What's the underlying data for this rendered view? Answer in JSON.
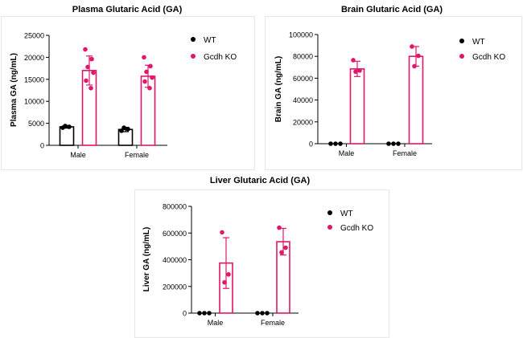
{
  "colors": {
    "wt": "#000000",
    "ko": "#e0176a",
    "axis": "#000000"
  },
  "chart_data": [
    {
      "id": "plasma",
      "type": "bar",
      "title": "Plasma Glutaric Acid (GA)",
      "ylabel": "Plasma GA (ng/mL)",
      "xlabel": "",
      "categories": [
        "Male",
        "Female"
      ],
      "ylim": [
        0,
        25000
      ],
      "yticks": [
        0,
        5000,
        10000,
        15000,
        20000,
        25000
      ],
      "ytick_labels": [
        "0",
        "5000",
        "10000",
        "15000",
        "20000",
        "25000"
      ],
      "legend_position": "top-right",
      "series": [
        {
          "name": "WT",
          "color": "#000000",
          "values": [
            4200,
            3600
          ],
          "errors": [
            300,
            500
          ],
          "points": [
            [
              4000,
              4200,
              4400
            ],
            [
              3300,
              3700,
              4000
            ]
          ]
        },
        {
          "name": "Gcdh KO",
          "color": "#e0176a",
          "values": [
            17000,
            15700
          ],
          "errors": [
            3300,
            2500
          ],
          "points": [
            [
              21800,
              19600,
              17800,
              16500,
              14700,
              13000
            ],
            [
              20000,
              18000,
              16700,
              15400,
              14500,
              13000
            ]
          ]
        }
      ]
    },
    {
      "id": "brain",
      "type": "bar",
      "title": "Brain Glutaric Acid (GA)",
      "ylabel": "Brain GA (ng/mL)",
      "xlabel": "",
      "categories": [
        "Male",
        "Female"
      ],
      "ylim": [
        0,
        100000
      ],
      "yticks": [
        0,
        20000,
        40000,
        60000,
        80000,
        100000
      ],
      "ytick_labels": [
        "0",
        "20000",
        "40000",
        "60000",
        "80000",
        "100000"
      ],
      "legend_position": "top-right",
      "series": [
        {
          "name": "WT",
          "color": "#000000",
          "values": [
            0,
            0
          ],
          "errors": [
            0,
            0
          ],
          "points": [
            [
              0,
              0,
              0
            ],
            [
              0,
              0,
              0
            ]
          ]
        },
        {
          "name": "Gcdh KO",
          "color": "#e0176a",
          "values": [
            68500,
            80000
          ],
          "errors": [
            7000,
            9000
          ],
          "points": [
            [
              76500,
              67000,
              66000
            ],
            [
              89000,
              80500,
              71000
            ]
          ]
        }
      ]
    },
    {
      "id": "liver",
      "type": "bar",
      "title": "Liver Glutaric Acid (GA)",
      "ylabel": "Liver GA (ng/mL)",
      "xlabel": "",
      "categories": [
        "Male",
        "Female"
      ],
      "ylim": [
        0,
        800000
      ],
      "yticks": [
        0,
        200000,
        400000,
        600000,
        800000
      ],
      "ytick_labels": [
        "0",
        "200000",
        "400000",
        "600000",
        "800000"
      ],
      "legend_position": "top-right",
      "series": [
        {
          "name": "WT",
          "color": "#000000",
          "values": [
            0,
            0
          ],
          "errors": [
            0,
            0
          ],
          "points": [
            [
              0,
              0,
              0
            ],
            [
              0,
              0,
              0
            ]
          ]
        },
        {
          "name": "Gcdh KO",
          "color": "#e0176a",
          "values": [
            375000,
            535000
          ],
          "errors": [
            190000,
            100000
          ],
          "points": [
            [
              605000,
              290000,
              230000
            ],
            [
              640000,
              490000,
              455000
            ]
          ]
        }
      ]
    }
  ]
}
